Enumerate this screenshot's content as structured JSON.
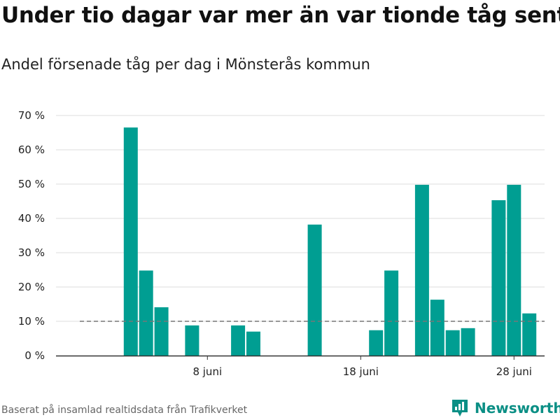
{
  "title": "Under tio dagar var mer än var tionde tåg sent",
  "subtitle": "Andel försenade tåg per dag i Mönsterås kommun",
  "footer": "Baserat på insamlad realtidsdata från Trafikverket",
  "brand": {
    "name": "Newsworthy",
    "icon": "newsworthy-logo-icon"
  },
  "colors": {
    "bar": "#009e92",
    "reference": "#777777",
    "grid": "#dddddd",
    "axis": "#333333"
  },
  "chart_data": {
    "type": "bar",
    "x": [
      "1 juni",
      "2 juni",
      "3 juni",
      "4 juni",
      "5 juni",
      "6 juni",
      "7 juni",
      "8 juni",
      "9 juni",
      "10 juni",
      "11 juni",
      "12 juni",
      "13 juni",
      "14 juni",
      "15 juni",
      "16 juni",
      "17 juni",
      "18 juni",
      "19 juni",
      "20 juni",
      "21 juni",
      "22 juni",
      "23 juni",
      "24 juni",
      "25 juni",
      "26 juni",
      "27 juni",
      "28 juni",
      "29 juni",
      "30 juni"
    ],
    "values": [
      null,
      null,
      66.5,
      24.8,
      14.1,
      null,
      8.8,
      null,
      null,
      8.8,
      7.0,
      null,
      null,
      null,
      38.2,
      null,
      null,
      null,
      7.4,
      24.8,
      null,
      49.8,
      16.3,
      7.4,
      8.0,
      null,
      45.3,
      49.8,
      12.3,
      null
    ],
    "xticks": [
      "8 juni",
      "18 juni",
      "28 juni"
    ],
    "yticks": [
      "0 %",
      "10 %",
      "20 %",
      "30 %",
      "40 %",
      "50 %",
      "60 %",
      "70 %"
    ],
    "ylim": [
      0,
      70
    ],
    "reference_line": 10,
    "grid": true,
    "xlabel": "",
    "ylabel": ""
  }
}
